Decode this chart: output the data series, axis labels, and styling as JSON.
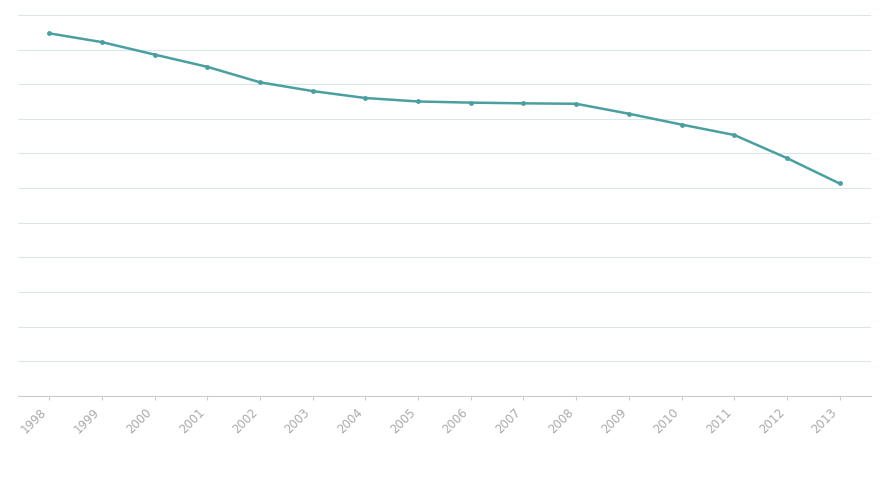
{
  "years": [
    1998,
    1999,
    2000,
    2001,
    2002,
    2003,
    2004,
    2005,
    2006,
    2007,
    2008,
    2009,
    2010,
    2011,
    2012,
    2013
  ],
  "values": [
    207000,
    203200,
    197800,
    192500,
    185800,
    182000,
    179000,
    177500,
    177000,
    176700,
    176500,
    172200,
    167500,
    163000,
    153000,
    142000
  ],
  "line_color": "#4a9fa0",
  "marker_color": "#4a9fa0",
  "background_color": "#ffffff",
  "plot_bg_color": "#ffffff",
  "grid_color": "#d8e8e8",
  "ylim_min": 50000,
  "ylim_max": 215000,
  "n_gridlines": 12
}
